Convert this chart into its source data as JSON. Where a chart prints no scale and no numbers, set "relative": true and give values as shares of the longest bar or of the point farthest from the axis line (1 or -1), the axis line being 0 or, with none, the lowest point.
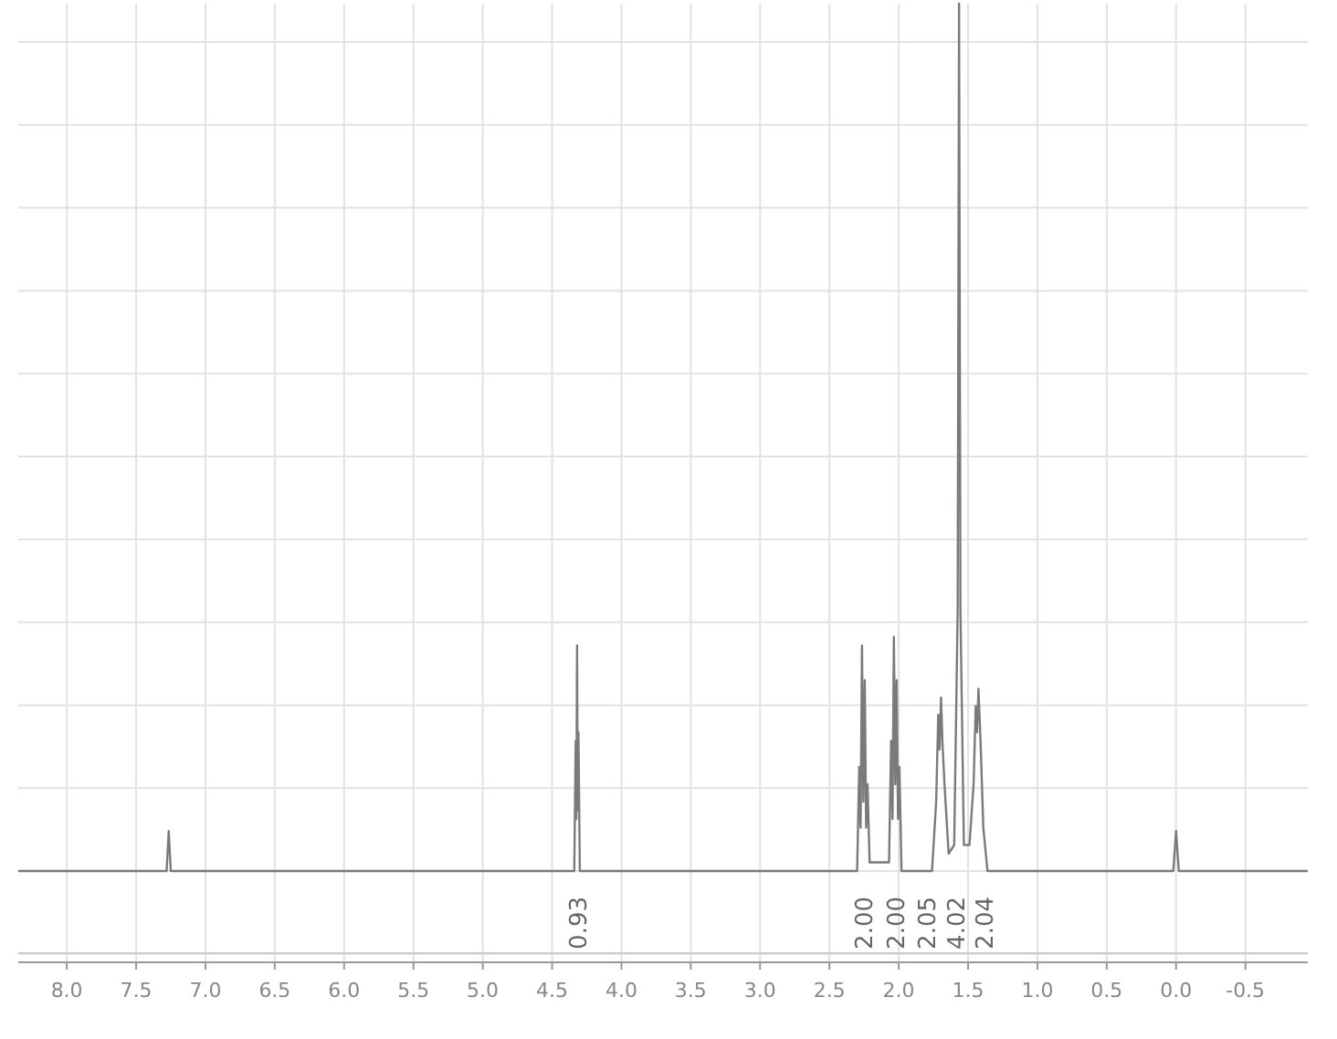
{
  "chart_data": {
    "type": "line",
    "relative": true,
    "grid": true,
    "marker": "none",
    "line_style": "solid",
    "color": "#7a7a7a",
    "xlim": [
      8.35,
      -0.95
    ],
    "xticks": [
      {
        "value": 8,
        "label": "8.0"
      },
      {
        "value": 7.5,
        "label": "7.5"
      },
      {
        "value": 7,
        "label": "7.0"
      },
      {
        "value": 6.5,
        "label": "6.5"
      },
      {
        "value": 6,
        "label": "6.0"
      },
      {
        "value": 5.5,
        "label": "5.5"
      },
      {
        "value": 5,
        "label": "5.0"
      },
      {
        "value": 4.5,
        "label": "4.5"
      },
      {
        "value": 4,
        "label": "4.0"
      },
      {
        "value": 3.5,
        "label": "3.5"
      },
      {
        "value": 3,
        "label": "3.0"
      },
      {
        "value": 2.5,
        "label": "2.5"
      },
      {
        "value": 2,
        "label": "2.0"
      },
      {
        "value": 1.5,
        "label": "1.5"
      },
      {
        "value": 1,
        "label": "1.0"
      },
      {
        "value": 0.5,
        "label": "0.5"
      },
      {
        "value": 0,
        "label": "0.0"
      },
      {
        "value": -0.5,
        "label": "-0.5"
      }
    ],
    "x": [
      8.35,
      7.28,
      7.265,
      7.25,
      4.34,
      4.33,
      4.325,
      4.32,
      4.315,
      4.31,
      4.3,
      2.3,
      2.285,
      2.275,
      2.265,
      2.255,
      2.245,
      2.235,
      2.225,
      2.21,
      2.07,
      2.055,
      2.045,
      2.035,
      2.025,
      2.015,
      2.005,
      1.995,
      1.98,
      1.76,
      1.73,
      1.715,
      1.705,
      1.695,
      1.685,
      1.67,
      1.64,
      1.6,
      1.575,
      1.565,
      1.555,
      1.53,
      1.49,
      1.46,
      1.445,
      1.435,
      1.425,
      1.41,
      1.39,
      1.36,
      0.02,
      0,
      -0.02,
      -0.95
    ],
    "values": [
      0,
      0,
      0.046,
      0,
      0,
      0.15,
      0.06,
      0.26,
      0.07,
      0.16,
      0,
      0,
      0.12,
      0.05,
      0.26,
      0.08,
      0.22,
      0.05,
      0.1,
      0.01,
      0.01,
      0.15,
      0.06,
      0.27,
      0.1,
      0.22,
      0.06,
      0.12,
      0,
      0,
      0.08,
      0.18,
      0.14,
      0.2,
      0.15,
      0.1,
      0.02,
      0.03,
      0.3,
      1,
      0.3,
      0.03,
      0.03,
      0.1,
      0.19,
      0.16,
      0.21,
      0.15,
      0.05,
      0,
      0,
      0.046,
      0,
      0
    ],
    "annotations": [
      {
        "text": "0.93",
        "x": 4.32,
        "y": 0
      },
      {
        "text": "2.00",
        "x": 2.26,
        "y": 0
      },
      {
        "text": "2.00",
        "x": 2.03,
        "y": 0
      },
      {
        "text": "2.05",
        "x": 1.8,
        "y": 0
      },
      "4.02",
      {
        "text": "2.04",
        "x": 1.39,
        "y": 0
      }
    ]
  }
}
